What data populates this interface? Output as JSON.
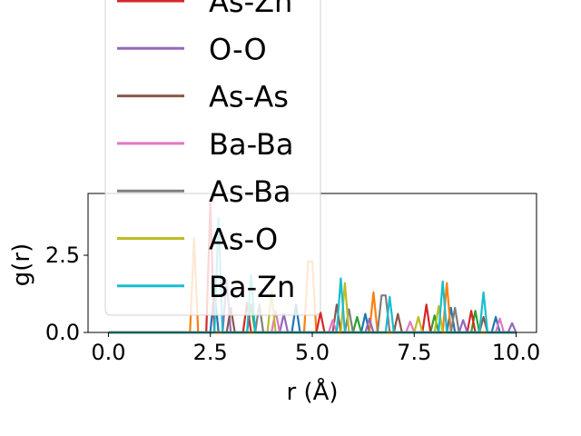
{
  "chart_data": {
    "type": "line",
    "xlabel": "r (Å)",
    "ylabel": "g(r)",
    "xlim": [
      -0.5,
      10.5
    ],
    "ylim": [
      0,
      4.5
    ],
    "x_ticks": [
      "0.0",
      "2.5",
      "5.0",
      "7.5",
      "10.0"
    ],
    "y_ticks": [
      "0.0",
      "2.5"
    ],
    "grid": false,
    "legend_placement": "upper-left, overflowing above the axes",
    "legend_visible_entries": [
      "As-Zn",
      "O-O",
      "As-As",
      "Ba-Ba",
      "As-Ba",
      "As-O",
      "Ba-Zn"
    ],
    "series": [
      {
        "name": "",
        "color": "#1f77b4",
        "peaks": [
          [
            2.6,
            1.4
          ],
          [
            4.6,
            0.9
          ],
          [
            6.3,
            0.6
          ],
          [
            8.4,
            0.8
          ],
          [
            9.5,
            0.5
          ]
        ]
      },
      {
        "name": "",
        "color": "#ff7f0e",
        "peaks": [
          [
            2.1,
            3.05
          ],
          [
            4.95,
            2.3
          ],
          [
            6.5,
            1.3
          ],
          [
            8.3,
            1.6
          ],
          [
            9.75,
            0.55
          ]
        ]
      },
      {
        "name": "",
        "color": "#2ca02c",
        "peaks": [
          [
            3.5,
            0.9
          ],
          [
            6.1,
            0.5
          ],
          [
            8.0,
            0.55
          ],
          [
            9.0,
            0.7
          ]
        ]
      },
      {
        "name": "As-Zn",
        "color": "#d62728",
        "peaks": [
          [
            2.5,
            4.2
          ],
          [
            3.4,
            0.95
          ],
          [
            5.2,
            0.65
          ],
          [
            7.8,
            0.9
          ],
          [
            8.9,
            0.7
          ]
        ]
      },
      {
        "name": "O-O",
        "color": "#9467bd",
        "peaks": [
          [
            2.85,
            1.7
          ],
          [
            4.3,
            0.6
          ],
          [
            6.4,
            0.45
          ],
          [
            8.7,
            0.4
          ],
          [
            9.9,
            0.3
          ]
        ]
      },
      {
        "name": "As-As",
        "color": "#8c564b",
        "peaks": [
          [
            3.0,
            0.8
          ],
          [
            5.6,
            0.9
          ],
          [
            7.1,
            0.6
          ],
          [
            9.2,
            0.5
          ]
        ]
      },
      {
        "name": "Ba-Ba",
        "color": "#e377c2",
        "peaks": [
          [
            4.1,
            0.7
          ],
          [
            5.5,
            0.4
          ],
          [
            7.4,
            0.35
          ],
          [
            9.6,
            0.45
          ]
        ]
      },
      {
        "name": "As-Ba",
        "color": "#7f7f7f",
        "peaks": [
          [
            3.7,
            0.9
          ],
          [
            5.9,
            0.75
          ],
          [
            6.75,
            1.2
          ],
          [
            8.5,
            0.8
          ]
        ]
      },
      {
        "name": "As-O",
        "color": "#bcbd22",
        "peaks": [
          [
            4.0,
            1.3
          ],
          [
            5.8,
            1.6
          ],
          [
            7.6,
            0.5
          ],
          [
            8.1,
            0.85
          ]
        ]
      },
      {
        "name": "Ba-Zn",
        "color": "#17becf",
        "peaks": [
          [
            2.7,
            3.7
          ],
          [
            3.45,
            1.85
          ],
          [
            5.7,
            1.75
          ],
          [
            6.9,
            1.15
          ],
          [
            8.2,
            1.65
          ],
          [
            9.15,
            1.3
          ]
        ]
      }
    ]
  }
}
